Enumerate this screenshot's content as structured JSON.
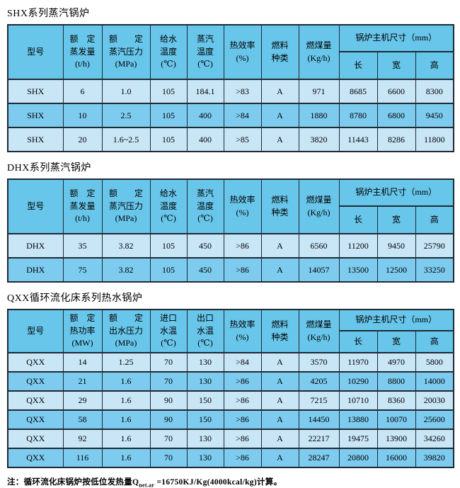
{
  "colors": {
    "header_bg": "#68c6eb",
    "row_light": "#c9e6f7",
    "row_dark": "#7dcbef",
    "grid_border": "#1e2a33",
    "page_bg": "#ffffff"
  },
  "note": {
    "prefix": "注：循环流化床锅炉按低位发热量Q",
    "sub": "net.ar",
    "suffix": " =16750KJ/Kg(4000kcal/kg)计算。"
  },
  "tables": [
    {
      "title": "SHX系列蒸汽锅炉",
      "headers": {
        "model": "型号",
        "col2": "额　定\n蒸发量\n(t/h)",
        "col3": "额　　定\n蒸汽压力\n(MPa)",
        "col4": "给水\n温度\n(℃)",
        "col5": "蒸汽\n温度\n(℃)",
        "eff": "热效率\n(%)",
        "fuel": "燃料\n种类",
        "coal": "燃煤量\n(Kg/h)",
        "dims": "锅炉主机尺寸（mm）",
        "len": "长",
        "wid": "宽",
        "hgt": "高"
      },
      "rows": [
        [
          "SHX",
          "6",
          "1.0",
          "105",
          "184.1",
          ">83",
          "A",
          "971",
          "8685",
          "6600",
          "8300"
        ],
        [
          "SHX",
          "10",
          "2.5",
          "105",
          "400",
          ">84",
          "A",
          "1880",
          "8780",
          "6800",
          "9450"
        ],
        [
          "SHX",
          "20",
          "1.6~2.5",
          "105",
          "400",
          ">85",
          "A",
          "3820",
          "11443",
          "8286",
          "11800"
        ]
      ]
    },
    {
      "title": "DHX系列蒸汽锅炉",
      "headers": {
        "model": "型号",
        "col2": "额　定\n蒸发量\n(t/h)",
        "col3": "额　　定\n蒸汽压力\n(MPa)",
        "col4": "给水\n温度\n(℃)",
        "col5": "蒸汽\n温度\n(℃)",
        "eff": "热效率\n(%)",
        "fuel": "燃料\n种类",
        "coal": "燃煤量\n(Kg/h)",
        "dims": "锅炉主机尺寸（mm）",
        "len": "长",
        "wid": "宽",
        "hgt": "高"
      },
      "rows": [
        [
          "DHX",
          "35",
          "3.82",
          "105",
          "450",
          ">86",
          "A",
          "6560",
          "11200",
          "9450",
          "25790"
        ],
        [
          "DHX",
          "75",
          "3.82",
          "105",
          "450",
          ">86",
          "A",
          "14057",
          "13500",
          "12500",
          "33250"
        ]
      ]
    },
    {
      "title": "QXX循环流化床系列热水锅炉",
      "headers": {
        "model": "型号",
        "col2": "额　定\n热功率\n(MW)",
        "col3": "额　　定\n出水压力\n(MPa)",
        "col4": "进口\n水温\n(℃)",
        "col5": "出口\n水温\n(℃)",
        "eff": "热效率\n(%)",
        "fuel": "燃料\n种类",
        "coal": "燃煤量\n(Kg/h)",
        "dims": "锅炉主机尺寸（mm）",
        "len": "长",
        "wid": "宽",
        "hgt": "高"
      },
      "rows": [
        [
          "QXX",
          "14",
          "1.25",
          "70",
          "130",
          ">84",
          "A",
          "3570",
          "11970",
          "4970",
          "5800"
        ],
        [
          "QXX",
          "21",
          "1.6",
          "70",
          "130",
          ">86",
          "A",
          "4205",
          "10290",
          "8800",
          "14000"
        ],
        [
          "QXX",
          "29",
          "1.6",
          "90",
          "150",
          ">86",
          "A",
          "7215",
          "10710",
          "8360",
          "20030"
        ],
        [
          "QXX",
          "58",
          "1.6",
          "90",
          "150",
          ">86",
          "A",
          "14450",
          "13880",
          "10070",
          "25600"
        ],
        [
          "QXX",
          "92",
          "1.6",
          "70",
          "130",
          ">86",
          "A",
          "22217",
          "19475",
          "13900",
          "34260"
        ],
        [
          "QXX",
          "116",
          "1.6",
          "70",
          "130",
          ">86",
          "A",
          "28247",
          "20800",
          "16000",
          "39820"
        ]
      ]
    }
  ]
}
